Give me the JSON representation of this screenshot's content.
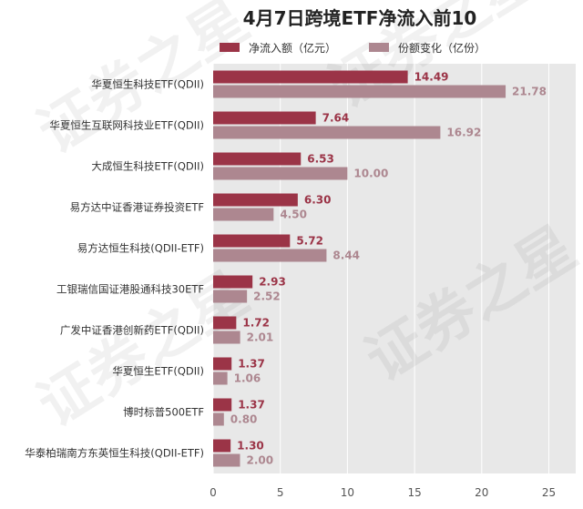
{
  "chart_data": {
    "type": "bar",
    "orientation": "horizontal",
    "title": "4月7日跨境ETF净流入前10",
    "categories": [
      "华夏恒生科技ETF(QDII)",
      "华夏恒生互联网科技业ETF(QDII)",
      "大成恒生科技ETF(QDII)",
      "易方达中证香港证券投资ETF",
      "易方达恒生科技(QDII-ETF)",
      "工银瑞信国证港股通科技30ETF",
      "广发中证香港创新药ETF(QDII)",
      "华夏恒生ETF(QDII)",
      "博时标普500ETF",
      "华泰柏瑞南方东英恒生科技(QDII-ETF)"
    ],
    "series": [
      {
        "name": "净流入额（亿元）",
        "color": "#9b3447",
        "values": [
          14.49,
          7.64,
          6.53,
          6.3,
          5.72,
          2.93,
          1.72,
          1.37,
          1.37,
          1.3
        ],
        "labels": [
          "14.49",
          "7.64",
          "6.53",
          "6.30",
          "5.72",
          "2.93",
          "1.72",
          "1.37",
          "1.37",
          "1.30"
        ]
      },
      {
        "name": "份额变化（亿份）",
        "color": "#ad8790",
        "values": [
          21.78,
          16.92,
          10.0,
          4.5,
          8.44,
          2.52,
          2.01,
          1.06,
          0.8,
          2.0
        ],
        "labels": [
          "21.78",
          "16.92",
          "10.00",
          "4.50",
          "8.44",
          "2.52",
          "2.01",
          "1.06",
          "0.80",
          "2.00"
        ]
      }
    ],
    "xlim": [
      0,
      27
    ],
    "xticks": [
      0,
      5,
      10,
      15,
      20,
      25
    ],
    "xtick_labels": [
      "0",
      "5",
      "10",
      "15",
      "20",
      "25"
    ],
    "grid": true,
    "legend_position": "top-center",
    "plot_background": "#e8e8e8",
    "watermark": "证券之星"
  }
}
